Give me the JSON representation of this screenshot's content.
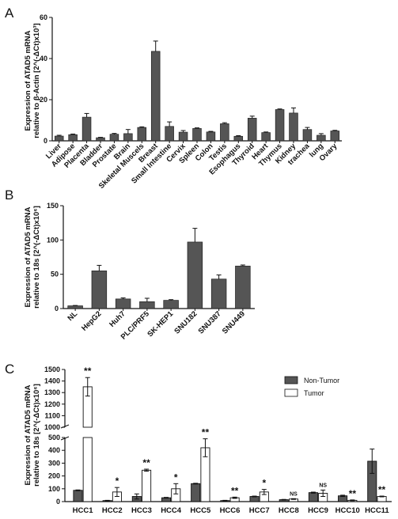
{
  "chart_data": [
    {
      "panel": "A",
      "type": "bar",
      "ylabel_line1": "Expression of ATAD5 mRNA",
      "ylabel_line2": "relative to β-Actin [2^(-ΔCt)x10³]",
      "ylim": [
        0,
        60
      ],
      "yticks": [
        0,
        20,
        40,
        60
      ],
      "categories": [
        "Liver",
        "Adipose",
        "Placenta",
        "Bladder",
        "Prostate",
        "Brain",
        "Skeletal Muscels",
        "Breast",
        "Small Intestine",
        "Cervix",
        "Spleen",
        "Colon",
        "Testis",
        "Esophagus",
        "Thyroid",
        "Heart",
        "Thymus",
        "Kidney",
        "trachea",
        "lung",
        "Ovary"
      ],
      "values": [
        2.3,
        3.0,
        11.5,
        1.5,
        3.2,
        3.5,
        6.5,
        43.5,
        7.0,
        4.2,
        6.0,
        4.3,
        8.3,
        2.2,
        11.0,
        4.0,
        15.2,
        13.5,
        5.5,
        2.7,
        4.8
      ],
      "errors": [
        0.4,
        0.3,
        1.8,
        0.2,
        0.4,
        2.0,
        0.3,
        5.0,
        2.2,
        0.8,
        0.3,
        0.3,
        0.5,
        0.3,
        1.0,
        0.3,
        0.3,
        2.5,
        1.0,
        0.8,
        0.3
      ],
      "bar_color": "#555555"
    },
    {
      "panel": "B",
      "type": "bar",
      "ylabel_line1": "Expression of ATAD5 mRNA",
      "ylabel_line2": "relative to 18s [2^(-ΔCt)x10⁶]",
      "ylim": [
        0,
        150
      ],
      "yticks": [
        0,
        50,
        100,
        150
      ],
      "categories": [
        "NL",
        "HepG2",
        "Huh7",
        "PLC/PRF5",
        "SK-HEP1",
        "SNU182",
        "SNU387",
        "SNU449"
      ],
      "values": [
        4,
        55,
        14,
        10,
        12,
        97,
        43,
        62
      ],
      "errors": [
        0.5,
        8,
        1.5,
        5,
        1,
        20,
        6,
        1.5
      ],
      "bar_color": "#555555"
    },
    {
      "panel": "C",
      "type": "bar",
      "ylabel_line1": "Expression of ATAD5 mRNA",
      "ylabel_line2": "relative to 18s [2^(-ΔCt)x10⁶]",
      "y_axis_break": true,
      "ylim_lower": [
        0,
        500
      ],
      "yticks_lower": [
        0,
        100,
        200,
        300,
        400,
        500
      ],
      "ylim_upper": [
        1000,
        1500
      ],
      "yticks_upper": [
        1000,
        1100,
        1200,
        1300,
        1400,
        1500
      ],
      "categories": [
        "HCC1",
        "HCC2",
        "HCC3",
        "HCC4",
        "HCC5",
        "HCC6",
        "HCC7",
        "HCC8",
        "HCC9",
        "HCC10",
        "HCC11"
      ],
      "legend_position": "top-right",
      "series": [
        {
          "name": "Non-Tumor",
          "color": "#555555",
          "values": [
            88,
            8,
            40,
            30,
            140,
            8,
            40,
            15,
            70,
            45,
            315
          ],
          "errors": [
            3,
            2,
            20,
            3,
            3,
            2,
            3,
            2,
            4,
            5,
            95
          ]
        },
        {
          "name": "Tumor",
          "color": "#ffffff",
          "values": [
            1350,
            75,
            245,
            100,
            420,
            30,
            75,
            20,
            65,
            10,
            40
          ],
          "errors": [
            80,
            35,
            8,
            40,
            70,
            5,
            20,
            3,
            25,
            3,
            3
          ]
        }
      ],
      "significance": [
        "**",
        "*",
        "**",
        "*",
        "**",
        "**",
        "*",
        "NS",
        "NS",
        "**",
        "**"
      ]
    }
  ]
}
